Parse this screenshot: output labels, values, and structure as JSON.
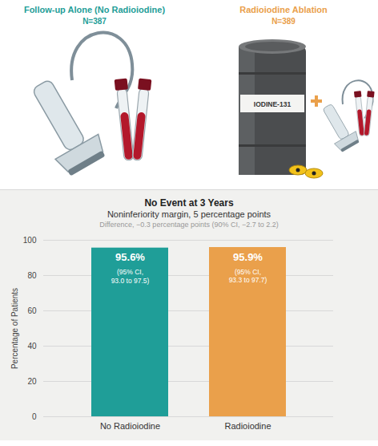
{
  "header": {
    "groups": [
      {
        "title": "Follow-up Alone (No Radioiodine)",
        "n": "N=387"
      },
      {
        "title": "Radioiodine Ablation",
        "n": "N=389"
      }
    ],
    "canister_label": "IODINE-131"
  },
  "chart_data": {
    "type": "bar",
    "title": "No Event at 3 Years",
    "subtitle": "Noninferiority margin, 5 percentage points",
    "annotations": [
      "Difference, −0.3 percentage points (90% CI, −2.7 to 2.2)"
    ],
    "categories": [
      "No Radioiodine",
      "Radioiodine"
    ],
    "values": [
      95.6,
      95.9
    ],
    "value_labels": [
      "95.6%",
      "95.9%"
    ],
    "ci_labels": [
      "(95% CI, 93.0 to 97.5)",
      "(95% CI, 93.3 to 97.7)"
    ],
    "colors": [
      "#1f9e98",
      "#eaa04b"
    ],
    "ylabel": "Percentage of Patients",
    "ylim": [
      0,
      100
    ],
    "yticks": [
      0,
      20,
      40,
      60,
      80,
      100
    ],
    "grid": true,
    "data_labels": true
  }
}
